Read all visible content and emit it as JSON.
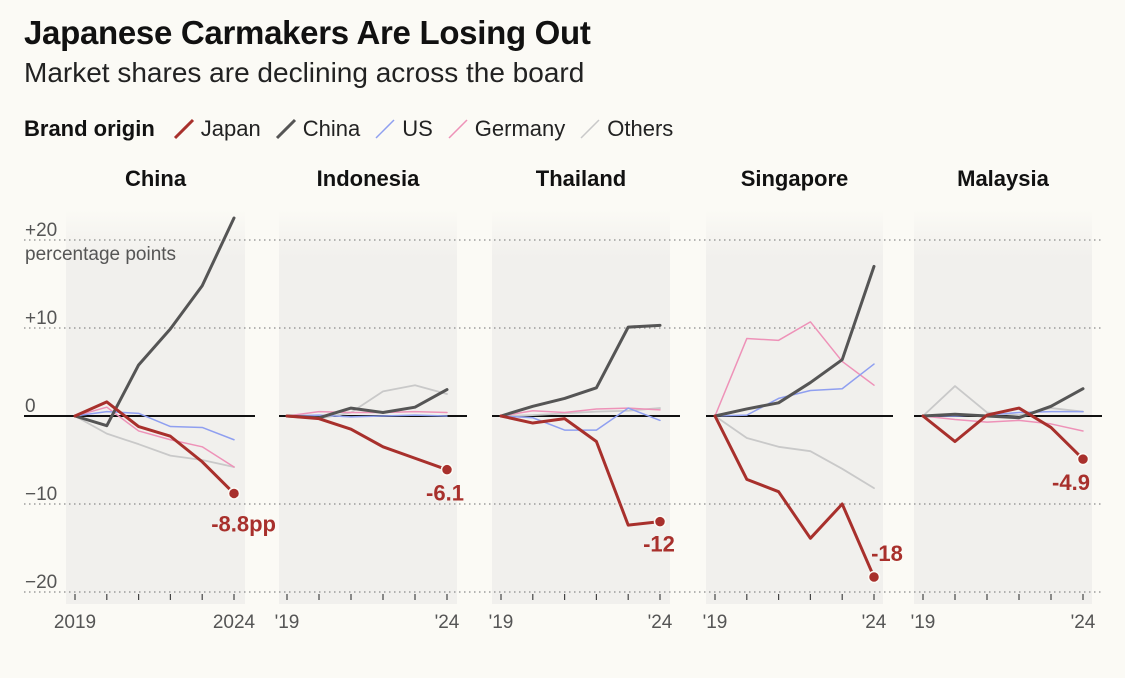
{
  "title": "Japanese Carmakers Are Losing Out",
  "subtitle": "Market shares are declining across the board",
  "legend": {
    "title": "Brand origin",
    "items": [
      {
        "label": "Japan",
        "color": "#a8302c"
      },
      {
        "label": "China",
        "color": "#555555"
      },
      {
        "label": "US",
        "color": "#8f9ff0"
      },
      {
        "label": "Germany",
        "color": "#ee92b8"
      },
      {
        "label": "Others",
        "color": "#c9c9c9"
      }
    ]
  },
  "axis_unit_label": "percentage points",
  "chart_data": {
    "type": "line",
    "title": "Japanese Carmakers Are Losing Out",
    "subtitle": "Market shares are declining across the board",
    "ylabel": "percentage points",
    "ylim": [
      -20,
      20
    ],
    "y_ticks": [
      {
        "value": 20,
        "label": "+20"
      },
      {
        "value": 10,
        "label": "+10"
      },
      {
        "value": 0,
        "label": "0"
      },
      {
        "value": -10,
        "label": "−10"
      },
      {
        "value": -20,
        "label": "−20"
      }
    ],
    "x": [
      2019,
      2020,
      2021,
      2022,
      2023,
      2024
    ],
    "x_tick_labels": [
      [
        "2019",
        "2024"
      ],
      [
        "'19",
        "'24"
      ],
      [
        "'19",
        "'24"
      ],
      [
        "'19",
        "'24"
      ],
      [
        "'19",
        "'24"
      ]
    ],
    "colors": {
      "Japan": "#a8302c",
      "China": "#555555",
      "US": "#8f9ff0",
      "Germany": "#ee92b8",
      "Others": "#c9c9c9"
    },
    "panels": [
      {
        "market": "China",
        "end_label": "-8.8pp",
        "series": [
          {
            "name": "Others",
            "values": [
              0,
              -2,
              -3.2,
              -4.5,
              -5,
              -5.8
            ]
          },
          {
            "name": "Germany",
            "values": [
              0,
              1,
              -1.7,
              -2.7,
              -3.5,
              -5.8
            ]
          },
          {
            "name": "US",
            "values": [
              0,
              0.5,
              0.3,
              -1.2,
              -1.3,
              -2.7
            ]
          },
          {
            "name": "China",
            "values": [
              0,
              -1.1,
              5.8,
              9.9,
              14.8,
              22.5
            ]
          },
          {
            "name": "Japan",
            "values": [
              0,
              1.6,
              -1.2,
              -2.3,
              -5.2,
              -8.8
            ]
          }
        ]
      },
      {
        "market": "Indonesia",
        "end_label": "-6.1",
        "series": [
          {
            "name": "Others",
            "values": [
              0,
              -0.3,
              0.4,
              2.8,
              3.5,
              2.5
            ]
          },
          {
            "name": "Germany",
            "values": [
              0,
              0.5,
              0.4,
              0.4,
              0.5,
              0.4
            ]
          },
          {
            "name": "US",
            "values": [
              0,
              0.1,
              -0.1,
              0,
              0.1,
              0
            ]
          },
          {
            "name": "China",
            "values": [
              0,
              -0.2,
              0.9,
              0.4,
              1,
              3
            ]
          },
          {
            "name": "Japan",
            "values": [
              0,
              -0.3,
              -1.5,
              -3.5,
              -4.8,
              -6.1
            ]
          }
        ]
      },
      {
        "market": "Thailand",
        "end_label": "-12",
        "series": [
          {
            "name": "Others",
            "values": [
              0,
              0.1,
              0.3,
              0.5,
              0.6,
              0.9
            ]
          },
          {
            "name": "Germany",
            "values": [
              0,
              0.6,
              0.4,
              0.8,
              0.9,
              0.7
            ]
          },
          {
            "name": "US",
            "values": [
              0,
              -0.2,
              -1.6,
              -1.6,
              0.9,
              -0.5
            ]
          },
          {
            "name": "China",
            "values": [
              0,
              1.1,
              2,
              3.2,
              10.1,
              10.3
            ]
          },
          {
            "name": "Japan",
            "values": [
              0,
              -0.8,
              -0.3,
              -2.9,
              -12.4,
              -12
            ]
          }
        ]
      },
      {
        "market": "Singapore",
        "end_label": "-18",
        "series": [
          {
            "name": "Others",
            "values": [
              0,
              -2.5,
              -3.5,
              -4,
              -6,
              -8.2
            ]
          },
          {
            "name": "Germany",
            "values": [
              0,
              8.8,
              8.6,
              10.7,
              6.2,
              3.5
            ]
          },
          {
            "name": "US",
            "values": [
              0,
              0.1,
              2,
              2.9,
              3.1,
              5.9
            ]
          },
          {
            "name": "China",
            "values": [
              0,
              0.8,
              1.5,
              3.8,
              6.4,
              17
            ]
          },
          {
            "name": "Japan",
            "values": [
              0,
              -7.2,
              -8.6,
              -13.9,
              -10,
              -18.3
            ]
          }
        ]
      },
      {
        "market": "Malaysia",
        "end_label": "-4.9",
        "series": [
          {
            "name": "Others",
            "values": [
              0,
              3.4,
              0.4,
              0.1,
              0.9,
              0.5
            ]
          },
          {
            "name": "Germany",
            "values": [
              0,
              -0.4,
              -0.7,
              -0.5,
              -0.9,
              -1.7
            ]
          },
          {
            "name": "US",
            "values": [
              0,
              0,
              0.1,
              0.4,
              0.5,
              0.5
            ]
          },
          {
            "name": "China",
            "values": [
              0,
              0.2,
              0,
              -0.2,
              1.1,
              3.1
            ]
          },
          {
            "name": "Japan",
            "values": [
              0,
              -2.9,
              0.1,
              0.9,
              -1.3,
              -4.9
            ]
          }
        ]
      }
    ]
  }
}
